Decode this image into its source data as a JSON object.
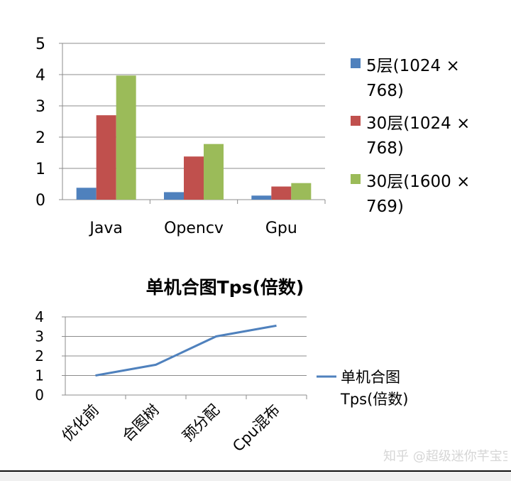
{
  "chart_data": [
    {
      "type": "bar",
      "title": "",
      "categories": [
        "Java",
        "Opencv",
        "Gpu"
      ],
      "ylim": [
        0,
        5
      ],
      "yticks": [
        0,
        1,
        2,
        3,
        4,
        5
      ],
      "grid": true,
      "legend_position": "right",
      "series": [
        {
          "name": "5层(1024 × 768)",
          "legend_lines": [
            "5层(1024 ×",
            "768)"
          ],
          "color": "#4f81bd",
          "values": [
            0.38,
            0.24,
            0.13
          ]
        },
        {
          "name": "30层(1024 × 768)",
          "legend_lines": [
            "30层(1024 ×",
            "768)"
          ],
          "color": "#c0504d",
          "values": [
            2.7,
            1.38,
            0.42
          ]
        },
        {
          "name": "30层(1600 × 769)",
          "legend_lines": [
            "30层(1600 ×",
            "769)"
          ],
          "color": "#9bbb59",
          "values": [
            3.97,
            1.78,
            0.53
          ]
        }
      ]
    },
    {
      "type": "line",
      "title": "单机合图Tps(倍数)",
      "categories": [
        "优化前",
        "合图树",
        "预分配",
        "Cpu混布"
      ],
      "ylim": [
        0,
        4
      ],
      "yticks": [
        0,
        1,
        2,
        3,
        4
      ],
      "grid": true,
      "legend_position": "right",
      "series": [
        {
          "name": "单机合图Tps(倍数)",
          "legend_lines": [
            "单机合图",
            "Tps(倍数)"
          ],
          "color": "#4f81bd",
          "values": [
            1.0,
            1.55,
            3.0,
            3.55
          ]
        }
      ]
    }
  ],
  "watermark": "知乎 @超级迷你芊宝宝"
}
